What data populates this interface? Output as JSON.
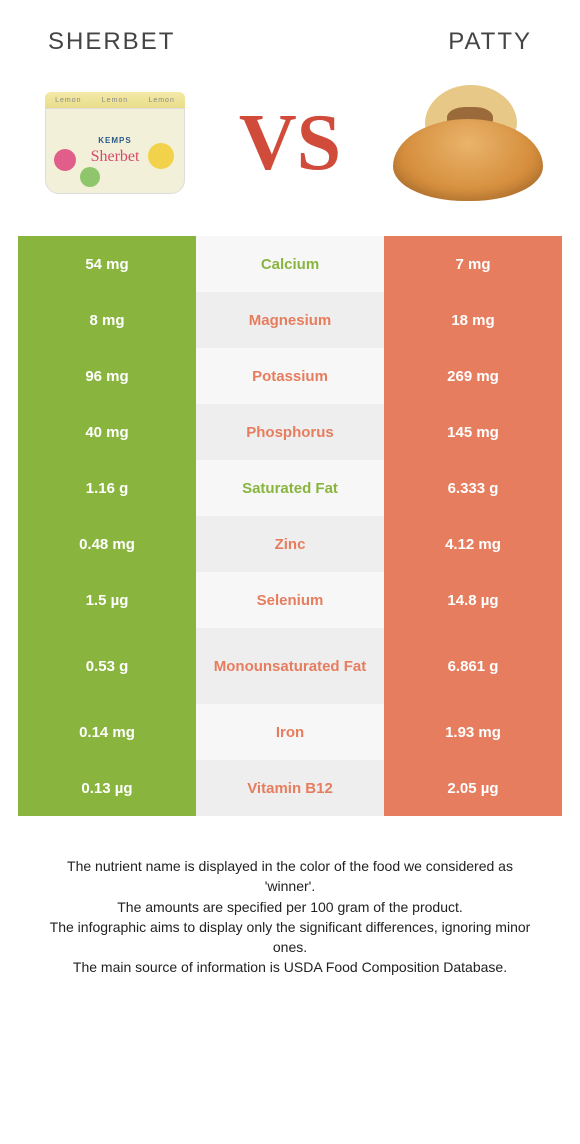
{
  "colors": {
    "green": "#89b53f",
    "orange": "#e67d5e",
    "vs": "#d14b3a"
  },
  "header": {
    "left_title": "Sherbet",
    "right_title": "Patty",
    "vs": "VS",
    "tub_tag": "Lemon",
    "tub_brand": "KEMPS",
    "tub_script": "Sherbet"
  },
  "rows": [
    {
      "nutrient": "Calcium",
      "left": "54 mg",
      "right": "7 mg",
      "winner": "left",
      "tall": false
    },
    {
      "nutrient": "Magnesium",
      "left": "8 mg",
      "right": "18 mg",
      "winner": "right",
      "tall": false
    },
    {
      "nutrient": "Potassium",
      "left": "96 mg",
      "right": "269 mg",
      "winner": "right",
      "tall": false
    },
    {
      "nutrient": "Phosphorus",
      "left": "40 mg",
      "right": "145 mg",
      "winner": "right",
      "tall": false
    },
    {
      "nutrient": "Saturated Fat",
      "left": "1.16 g",
      "right": "6.333 g",
      "winner": "left",
      "tall": false
    },
    {
      "nutrient": "Zinc",
      "left": "0.48 mg",
      "right": "4.12 mg",
      "winner": "right",
      "tall": false
    },
    {
      "nutrient": "Selenium",
      "left": "1.5 µg",
      "right": "14.8 µg",
      "winner": "right",
      "tall": false
    },
    {
      "nutrient": "Monounsaturated Fat",
      "left": "0.53 g",
      "right": "6.861 g",
      "winner": "right",
      "tall": true
    },
    {
      "nutrient": "Iron",
      "left": "0.14 mg",
      "right": "1.93 mg",
      "winner": "right",
      "tall": false
    },
    {
      "nutrient": "Vitamin B12",
      "left": "0.13 µg",
      "right": "2.05 µg",
      "winner": "right",
      "tall": false
    }
  ],
  "caption": {
    "l1": "The nutrient name is displayed in the color of the food we considered as 'winner'.",
    "l2": "The amounts are specified per 100 gram of the product.",
    "l3": "The infographic aims to display only the significant differences, ignoring minor ones.",
    "l4": "The main source of information is USDA Food Composition Database."
  }
}
